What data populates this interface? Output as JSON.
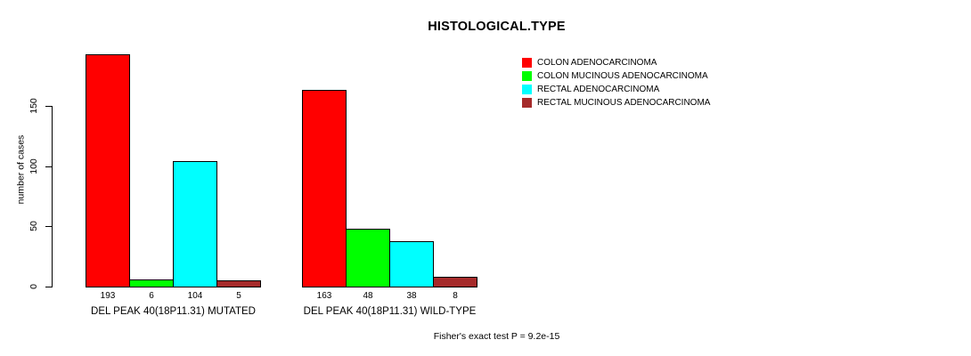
{
  "title": "HISTOLOGICAL.TYPE",
  "footer": "Fisher's exact test P = 9.2e-15",
  "y_axis": {
    "label": "number of cases",
    "tick_values": [
      0,
      50,
      100,
      150
    ]
  },
  "chart_data": {
    "type": "bar",
    "title": "HISTOLOGICAL.TYPE",
    "xlabel": "",
    "ylabel": "number of cases",
    "axis_ticks": [
      0,
      50,
      100,
      150
    ],
    "ylim": [
      0,
      195
    ],
    "grid": false,
    "legend_position": "top-right",
    "bar_value_labels": true,
    "categories": [
      "DEL PEAK 40(18P11.31) MUTATED",
      "DEL PEAK 40(18P11.31) WILD-TYPE"
    ],
    "series": [
      {
        "name": "COLON ADENOCARCINOMA",
        "color": "#ff0000",
        "values": [
          193,
          163
        ]
      },
      {
        "name": "COLON MUCINOUS ADENOCARCINOMA",
        "color": "#00ff00",
        "values": [
          6,
          48
        ]
      },
      {
        "name": "RECTAL ADENOCARCINOMA",
        "color": "#00ffff",
        "values": [
          104,
          38
        ]
      },
      {
        "name": "RECTAL MUCINOUS ADENOCARCINOMA",
        "color": "#a52a2a",
        "values": [
          5,
          8
        ]
      }
    ],
    "stat_annotation": "Fisher's exact test P = 9.2e-15"
  }
}
